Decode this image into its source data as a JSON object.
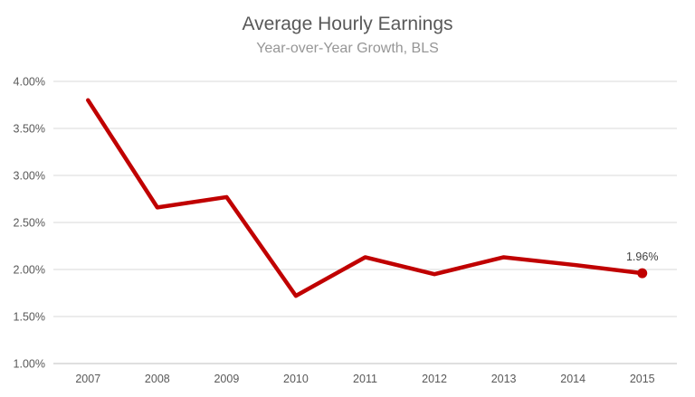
{
  "chart_data": {
    "type": "line",
    "title": "Average Hourly Earnings",
    "subtitle": "Year-over-Year Growth, BLS",
    "categories": [
      "2007",
      "2008",
      "2009",
      "2010",
      "2011",
      "2012",
      "2013",
      "2014",
      "2015"
    ],
    "values": [
      3.8,
      2.66,
      2.77,
      1.72,
      2.13,
      1.95,
      2.13,
      2.05,
      1.96
    ],
    "y_ticks": [
      "4.00%",
      "3.50%",
      "3.00%",
      "2.50%",
      "2.00%",
      "1.50%",
      "1.00%"
    ],
    "y_max": 4.0,
    "y_min": 1.0,
    "y_step": 0.5,
    "end_label": "1.96%",
    "grid": true,
    "legend": "none",
    "colors": {
      "line": "#C00000",
      "marker": "#C00000",
      "grid": "#D9D9D9",
      "axis_line": "#BFBFBF",
      "title": "#595959",
      "subtitle": "#969696",
      "tick_label": "#595959",
      "end_label": "#404040"
    }
  }
}
